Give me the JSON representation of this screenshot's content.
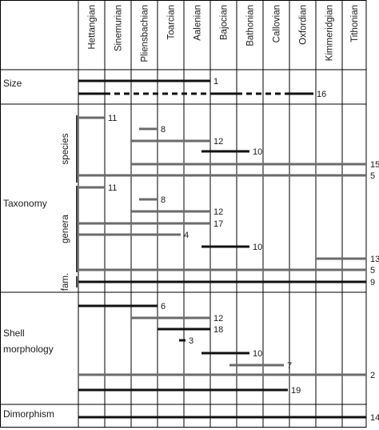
{
  "stages": [
    "Hettangian",
    "Sinemurian",
    "Pliensbachian",
    "Toarcian",
    "Aalenian",
    "Bajocian",
    "Bathonian",
    "Callovian",
    "Oxfordian",
    "Kimmeridgian",
    "Tithonian"
  ],
  "sections": [
    {
      "label_lines": [
        "Size"
      ]
    },
    {
      "label_lines": [
        "Taxonomy"
      ]
    },
    {
      "label_lines": [
        "Shell",
        "morphology"
      ]
    },
    {
      "label_lines": [
        "Dimorphism"
      ]
    }
  ],
  "subgroups": [
    {
      "label": "species"
    },
    {
      "label": "genera"
    },
    {
      "label": "fam."
    }
  ],
  "colors": {
    "dark": "#111111",
    "gray": "#6b6b6b",
    "grid": "#000000"
  },
  "chart_data": {
    "type": "range-bars",
    "x_axis": "Jurassic stages",
    "bars": [
      {
        "section": "Size",
        "from": "Hettangian",
        "to": "Aalenian",
        "color": "dark",
        "label": "1"
      },
      {
        "section": "Size",
        "from": "Hettangian",
        "to": "Oxfordian",
        "color": "dark",
        "style": "dashed-middle",
        "label": "16"
      },
      {
        "section": "Taxonomy",
        "group": "species",
        "from": "Hettangian",
        "to": "Hettangian",
        "color": "gray",
        "label": "11"
      },
      {
        "section": "Taxonomy",
        "group": "species",
        "from": "Pliensbachian",
        "to": "Toarcian",
        "color": "gray",
        "label": "8"
      },
      {
        "section": "Taxonomy",
        "group": "species",
        "from": "Pliensbachian",
        "to": "Aalenian",
        "color": "gray",
        "label": "12"
      },
      {
        "section": "Taxonomy",
        "group": "species",
        "from": "Bajocian",
        "to": "Bathonian",
        "color": "dark",
        "label": "10"
      },
      {
        "section": "Taxonomy",
        "group": "species",
        "from": "Pliensbachian",
        "to": "Tithonian",
        "color": "gray",
        "label": "15"
      },
      {
        "section": "Taxonomy",
        "group": "species",
        "from": "Hettangian",
        "to": "Tithonian",
        "color": "gray",
        "label": "5"
      },
      {
        "section": "Taxonomy",
        "group": "genera",
        "from": "Hettangian",
        "to": "Hettangian",
        "color": "gray",
        "label": "11"
      },
      {
        "section": "Taxonomy",
        "group": "genera",
        "from": "Pliensbachian",
        "to": "Toarcian",
        "color": "gray",
        "label": "8"
      },
      {
        "section": "Taxonomy",
        "group": "genera",
        "from": "Pliensbachian",
        "to": "Aalenian",
        "color": "gray",
        "label": "12"
      },
      {
        "section": "Taxonomy",
        "group": "genera",
        "from": "Hettangian",
        "to": "Aalenian",
        "color": "gray",
        "label": "17"
      },
      {
        "section": "Taxonomy",
        "group": "genera",
        "from": "Hettangian",
        "to": "Aalenian",
        "color": "gray",
        "label": "4"
      },
      {
        "section": "Taxonomy",
        "group": "genera",
        "from": "Bajocian",
        "to": "Bathonian",
        "color": "dark",
        "label": "10"
      },
      {
        "section": "Taxonomy",
        "group": "genera",
        "from": "Kimmeridgian",
        "to": "Tithonian",
        "color": "gray",
        "label": "13"
      },
      {
        "section": "Taxonomy",
        "group": "genera",
        "from": "Hettangian",
        "to": "Tithonian",
        "color": "gray",
        "label": "5"
      },
      {
        "section": "Taxonomy",
        "group": "fam.",
        "from": "Hettangian",
        "to": "Tithonian",
        "color": "dark",
        "label": "9"
      },
      {
        "section": "Shell morphology",
        "from": "Hettangian",
        "to": "Pliensbachian",
        "color": "dark",
        "label": "6"
      },
      {
        "section": "Shell morphology",
        "from": "Pliensbachian",
        "to": "Aalenian",
        "color": "gray",
        "label": "12"
      },
      {
        "section": "Shell morphology",
        "from": "Toarcian",
        "to": "Aalenian",
        "color": "dark",
        "label": "18"
      },
      {
        "section": "Shell morphology",
        "from": "Toarcian",
        "to": "Toarcian",
        "color": "dark",
        "label": "3"
      },
      {
        "section": "Shell morphology",
        "from": "Bajocian",
        "to": "Bathonian",
        "color": "dark",
        "label": "10"
      },
      {
        "section": "Shell morphology",
        "from": "Bathonian",
        "to": "Callovian",
        "color": "gray",
        "label": "7"
      },
      {
        "section": "Shell morphology",
        "from": "Hettangian",
        "to": "Tithonian",
        "color": "gray",
        "label": "2"
      },
      {
        "section": "Shell morphology",
        "from": "Hettangian",
        "to": "Oxfordian",
        "color": "dark",
        "label": "19"
      },
      {
        "section": "Dimorphism",
        "from": "Hettangian",
        "to": "Tithonian",
        "color": "dark",
        "label": "14"
      }
    ]
  }
}
